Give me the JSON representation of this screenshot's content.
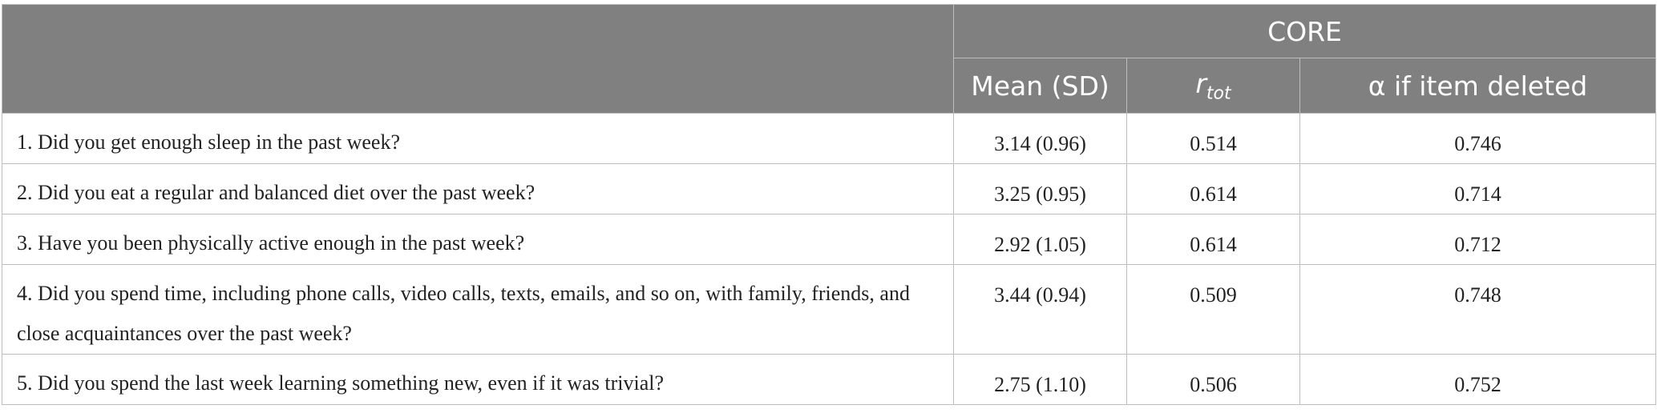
{
  "table": {
    "header": {
      "group": "CORE",
      "columns": [
        "Mean (SD)",
        {
          "main": "r",
          "sub": "tot"
        },
        "α if item deleted"
      ]
    },
    "rows": [
      [
        "1. Did you get enough sleep in the past week?",
        "3.14 (0.96)",
        "0.514",
        "0.746"
      ],
      [
        "2. Did you eat a regular and balanced diet over the past week?",
        "3.25 (0.95)",
        "0.614",
        "0.714"
      ],
      [
        "3. Have you been physically active enough in the past week?",
        "2.92 (1.05)",
        "0.614",
        "0.712"
      ],
      [
        "4. Did you spend time, including phone calls, video calls, texts, emails, and so on, with family, friends, and close acquaintances over the past week?",
        "3.44 (0.94)",
        "0.509",
        "0.748"
      ],
      [
        "5. Did you spend the last week learning something new, even if it was trivial?",
        "2.75 (1.10)",
        "0.506",
        "0.752"
      ]
    ]
  }
}
